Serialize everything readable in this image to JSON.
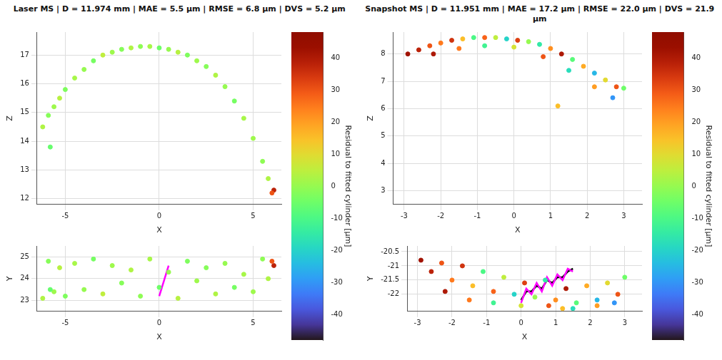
{
  "chart_data": [
    {
      "type": "scatter",
      "title": "Laser MS | D = 11.974 mm | MAE = 5.5 μm | RMSE = 6.8 μm | DVS = 5.2 μm",
      "x_label": "X",
      "y_label": "Y",
      "z_label": "Z",
      "xlim": [
        -6.5,
        6.5
      ],
      "xticks": [
        -5,
        0,
        5
      ],
      "ylim": [
        22.5,
        25.5
      ],
      "yticks": [
        23,
        24,
        25
      ],
      "zlim": [
        11.8,
        17.8
      ],
      "zticks": [
        12,
        13,
        14,
        15,
        16,
        17
      ],
      "grid": true,
      "points": {
        "x": [
          -6.2,
          -5.9,
          -5.6,
          -5.3,
          -5.0,
          -4.5,
          -4.0,
          -3.5,
          -3.0,
          -2.5,
          -2.0,
          -1.5,
          -1.0,
          -0.5,
          0.0,
          0.5,
          1.0,
          1.5,
          2.0,
          2.5,
          3.0,
          3.5,
          4.0,
          4.5,
          5.0,
          5.5,
          5.8,
          6.1,
          -5.8,
          6.0
        ],
        "y": [
          23.1,
          24.8,
          23.4,
          24.5,
          23.2,
          24.7,
          23.5,
          24.9,
          23.3,
          24.6,
          23.8,
          24.4,
          23.2,
          24.9,
          23.6,
          24.3,
          23.1,
          24.8,
          23.9,
          24.5,
          23.3,
          24.7,
          23.6,
          24.2,
          23.4,
          24.9,
          24.0,
          24.6,
          23.5,
          24.8
        ],
        "z": [
          14.5,
          14.9,
          15.2,
          15.5,
          15.8,
          16.2,
          16.5,
          16.8,
          17.0,
          17.1,
          17.2,
          17.25,
          17.3,
          17.3,
          17.25,
          17.2,
          17.1,
          17.0,
          16.8,
          16.6,
          16.3,
          15.9,
          15.4,
          14.8,
          14.1,
          13.3,
          12.7,
          12.3,
          13.8,
          12.2
        ],
        "residual": [
          3,
          -2,
          1,
          4,
          -3,
          2,
          0,
          -4,
          5,
          1,
          -2,
          3,
          -1,
          2,
          -5,
          0,
          4,
          -3,
          1,
          -2,
          3,
          0,
          -4,
          2,
          1,
          -1,
          3,
          38,
          -6,
          30
        ]
      },
      "lines": [
        {
          "color": "#ff00ff",
          "x": [
            0.0,
            0.5
          ],
          "y": [
            23.2,
            24.6
          ]
        }
      ],
      "colorbar": {
        "label": "Residual to fitted cylinder [μm]",
        "range": [
          -48,
          48
        ],
        "ticks": [
          -40,
          -30,
          -20,
          -10,
          0,
          10,
          20,
          30,
          40
        ]
      }
    },
    {
      "type": "scatter",
      "title": "Snapshot MS | D = 11.951 mm | MAE = 17.2 μm | RMSE = 22.0 μm | DVS = 21.9 μm",
      "x_label": "X",
      "y_label": "Y",
      "z_label": "Z",
      "xlim": [
        -3.3,
        3.5
      ],
      "xticks": [
        -3,
        -2,
        -1,
        0,
        1,
        2,
        3
      ],
      "ylim": [
        -22.6,
        -20.3
      ],
      "yticks": [
        -22,
        -21.5,
        -21,
        -20.5
      ],
      "zlim": [
        2.5,
        8.8
      ],
      "zticks": [
        3,
        4,
        5,
        6,
        7,
        8
      ],
      "grid": true,
      "points": {
        "x": [
          -2.9,
          -2.6,
          -2.3,
          -2.0,
          -1.7,
          -1.4,
          -1.1,
          -0.8,
          -0.5,
          -0.2,
          0.1,
          0.4,
          0.7,
          1.0,
          1.3,
          1.6,
          1.9,
          2.2,
          2.5,
          2.8,
          3.0,
          -2.2,
          -1.5,
          -0.8,
          0.0,
          0.8,
          1.5,
          2.2,
          2.7,
          1.2
        ],
        "y": [
          -20.8,
          -21.2,
          -20.9,
          -21.5,
          -21.0,
          -21.7,
          -21.2,
          -21.9,
          -21.4,
          -22.0,
          -21.6,
          -22.1,
          -21.5,
          -22.2,
          -21.8,
          -22.3,
          -21.7,
          -22.2,
          -21.6,
          -22.0,
          -21.4,
          -21.9,
          -22.2,
          -22.3,
          -22.4,
          -22.4,
          -22.5,
          -22.4,
          -22.3,
          -22.5
        ],
        "z": [
          8.0,
          8.15,
          8.3,
          8.4,
          8.5,
          8.55,
          8.6,
          8.6,
          8.6,
          8.55,
          8.5,
          8.45,
          8.35,
          8.2,
          8.0,
          7.8,
          7.55,
          7.3,
          7.05,
          6.8,
          6.75,
          8.0,
          8.2,
          8.3,
          8.25,
          7.9,
          7.4,
          6.8,
          6.4,
          6.1
        ],
        "residual": [
          42,
          38,
          30,
          25,
          35,
          15,
          -10,
          28,
          5,
          -20,
          33,
          0,
          -15,
          22,
          40,
          -8,
          18,
          -25,
          10,
          30,
          -5,
          40,
          25,
          -12,
          8,
          30,
          -18,
          20,
          -30,
          15
        ]
      },
      "lines": [
        {
          "color": "#ff00ff",
          "x": [
            0.0,
            0.15,
            0.3,
            0.45,
            0.6,
            0.75,
            0.9,
            1.05,
            1.2,
            1.35,
            1.5
          ],
          "y": [
            -22.3,
            -21.8,
            -22.0,
            -21.6,
            -21.9,
            -21.4,
            -21.7,
            -21.3,
            -21.5,
            -21.1,
            -21.2
          ]
        },
        {
          "color": "#000000",
          "x": [
            0.0,
            0.15,
            0.3,
            0.45,
            0.6,
            0.75,
            0.9,
            1.05,
            1.2,
            1.35,
            1.5
          ],
          "y": [
            -22.2,
            -21.9,
            -21.9,
            -21.7,
            -21.8,
            -21.5,
            -21.6,
            -21.4,
            -21.4,
            -21.2,
            -21.1
          ]
        }
      ],
      "colorbar": {
        "label": "Residual to fitted cylinder [μm]",
        "range": [
          -48,
          48
        ],
        "ticks": [
          -40,
          -30,
          -20,
          -10,
          0,
          10,
          20,
          30,
          40
        ]
      }
    }
  ]
}
